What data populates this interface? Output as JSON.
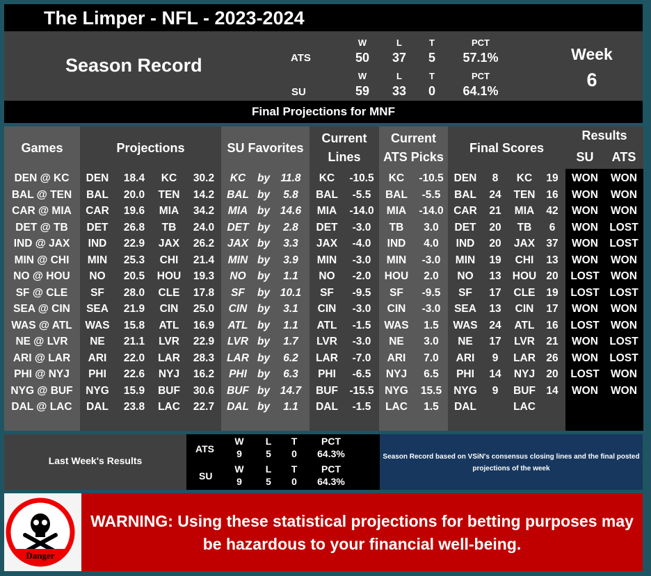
{
  "title": "The Limper - NFL - 2023-2024",
  "season": {
    "label": "Season Record",
    "week_label": "Week",
    "week": "6",
    "ats": {
      "label": "ATS",
      "w_h": "W",
      "l_h": "L",
      "t_h": "T",
      "pct_h": "PCT",
      "w": "50",
      "l": "37",
      "t": "5",
      "pct": "57.1%"
    },
    "su": {
      "label": "SU",
      "w_h": "W",
      "l_h": "L",
      "t_h": "T",
      "pct_h": "PCT",
      "w": "59",
      "l": "33",
      "t": "0",
      "pct": "64.1%"
    }
  },
  "banner": "Final Projections for MNF",
  "headers": {
    "games": "Games",
    "projections": "Projections",
    "su_fav": "SU Favorites",
    "lines1": "Current",
    "lines2": "Lines",
    "ats1": "Current",
    "ats2": "ATS Picks",
    "final": "Final Scores",
    "results": "Results",
    "res_su": "SU",
    "res_ats": "ATS"
  },
  "rows": [
    [
      "DEN @ KC",
      "DEN",
      "18.4",
      "KC",
      "30.2",
      "KC",
      "by",
      "11.8",
      "KC",
      "-10.5",
      "KC",
      "-10.5",
      "DEN",
      "8",
      "KC",
      "19",
      "WON",
      "WON"
    ],
    [
      "BAL @ TEN",
      "BAL",
      "20.0",
      "TEN",
      "14.2",
      "BAL",
      "by",
      "5.8",
      "BAL",
      "-5.5",
      "BAL",
      "-5.5",
      "BAL",
      "24",
      "TEN",
      "16",
      "WON",
      "WON"
    ],
    [
      "CAR @ MIA",
      "CAR",
      "19.6",
      "MIA",
      "34.2",
      "MIA",
      "by",
      "14.6",
      "MIA",
      "-14.0",
      "MIA",
      "-14.0",
      "CAR",
      "21",
      "MIA",
      "42",
      "WON",
      "WON"
    ],
    [
      "DET @ TB",
      "DET",
      "26.8",
      "TB",
      "24.0",
      "DET",
      "by",
      "2.8",
      "DET",
      "-3.0",
      "TB",
      "3.0",
      "DET",
      "20",
      "TB",
      "6",
      "WON",
      "LOST"
    ],
    [
      "IND @ JAX",
      "IND",
      "22.9",
      "JAX",
      "26.2",
      "JAX",
      "by",
      "3.3",
      "JAX",
      "-4.0",
      "IND",
      "4.0",
      "IND",
      "20",
      "JAX",
      "37",
      "WON",
      "LOST"
    ],
    [
      "MIN @ CHI",
      "MIN",
      "25.3",
      "CHI",
      "21.4",
      "MIN",
      "by",
      "3.9",
      "MIN",
      "-3.0",
      "MIN",
      "-3.0",
      "MIN",
      "19",
      "CHI",
      "13",
      "WON",
      "WON"
    ],
    [
      "NO @ HOU",
      "NO",
      "20.5",
      "HOU",
      "19.3",
      "NO",
      "by",
      "1.1",
      "NO",
      "-2.0",
      "HOU",
      "2.0",
      "NO",
      "13",
      "HOU",
      "20",
      "LOST",
      "WON"
    ],
    [
      "SF @ CLE",
      "SF",
      "28.0",
      "CLE",
      "17.8",
      "SF",
      "by",
      "10.1",
      "SF",
      "-9.5",
      "SF",
      "-9.5",
      "SF",
      "17",
      "CLE",
      "19",
      "LOST",
      "LOST"
    ],
    [
      "SEA @ CIN",
      "SEA",
      "21.9",
      "CIN",
      "25.0",
      "CIN",
      "by",
      "3.1",
      "CIN",
      "-3.0",
      "CIN",
      "-3.0",
      "SEA",
      "13",
      "CIN",
      "17",
      "WON",
      "WON"
    ],
    [
      "WAS @ ATL",
      "WAS",
      "15.8",
      "ATL",
      "16.9",
      "ATL",
      "by",
      "1.1",
      "ATL",
      "-1.5",
      "WAS",
      "1.5",
      "WAS",
      "24",
      "ATL",
      "16",
      "LOST",
      "WON"
    ],
    [
      "NE @ LVR",
      "NE",
      "21.1",
      "LVR",
      "22.9",
      "LVR",
      "by",
      "1.7",
      "LVR",
      "-3.0",
      "NE",
      "3.0",
      "NE",
      "17",
      "LVR",
      "21",
      "WON",
      "LOST"
    ],
    [
      "ARI @ LAR",
      "ARI",
      "22.0",
      "LAR",
      "28.3",
      "LAR",
      "by",
      "6.2",
      "LAR",
      "-7.0",
      "ARI",
      "7.0",
      "ARI",
      "9",
      "LAR",
      "26",
      "WON",
      "LOST"
    ],
    [
      "PHI @ NYJ",
      "PHI",
      "22.6",
      "NYJ",
      "16.2",
      "PHI",
      "by",
      "6.3",
      "PHI",
      "-6.5",
      "NYJ",
      "6.5",
      "PHI",
      "14",
      "NYJ",
      "20",
      "LOST",
      "WON"
    ],
    [
      "NYG @ BUF",
      "NYG",
      "15.9",
      "BUF",
      "30.6",
      "BUF",
      "by",
      "14.7",
      "BUF",
      "-15.5",
      "NYG",
      "15.5",
      "NYG",
      "9",
      "BUF",
      "14",
      "WON",
      "WON"
    ],
    [
      "DAL @ LAC",
      "DAL",
      "23.8",
      "LAC",
      "22.7",
      "DAL",
      "by",
      "1.1",
      "DAL",
      "-1.5",
      "LAC",
      "1.5",
      "DAL",
      "",
      "LAC",
      "",
      "",
      ""
    ]
  ],
  "last_week": {
    "label": "Last Week's Results",
    "ats": {
      "label": "ATS",
      "w_h": "W",
      "l_h": "L",
      "t_h": "T",
      "pct_h": "PCT",
      "w": "9",
      "l": "5",
      "t": "0",
      "pct": "64.3%"
    },
    "su": {
      "label": "SU",
      "w_h": "W",
      "l_h": "L",
      "t_h": "T",
      "pct_h": "PCT",
      "w": "9",
      "l": "5",
      "t": "0",
      "pct": "64.3%"
    }
  },
  "note": "Season Record based on VSiN's consensus closing lines and the final posted projections of the week",
  "warning": {
    "text": "WARNING: Using these statistical projections for betting purposes may be hazardous to your financial well-being.",
    "icon_label": "Danger"
  },
  "colors": {
    "frame": "#1f5563",
    "dark": "#404040",
    "mid": "#595959",
    "warning": "#c00000",
    "note_bg": "#17375e"
  }
}
